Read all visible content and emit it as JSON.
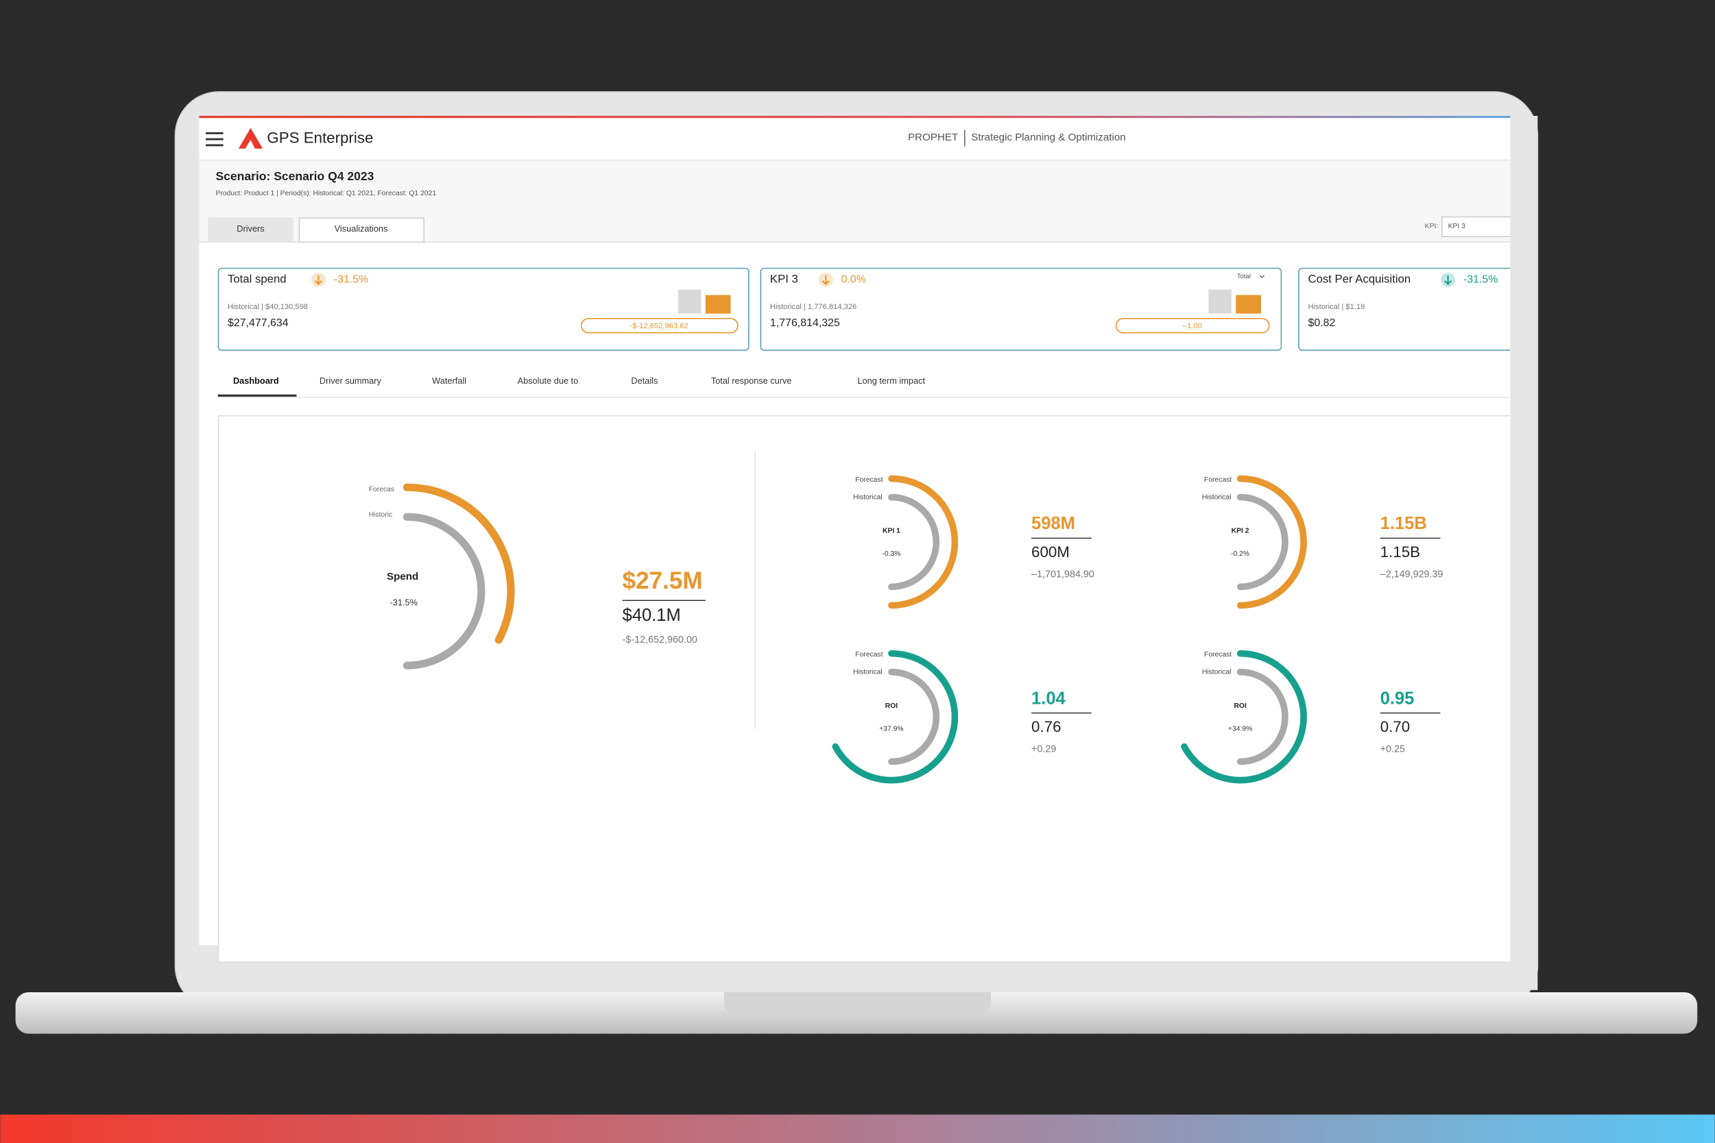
{
  "header": {
    "brand": "GPS Enterprise",
    "product": "PROPHET",
    "module": "Strategic Planning & Optimization"
  },
  "scenario": {
    "title": "Scenario: Scenario Q4 2023",
    "details": "Product: Product 1  |  Period(s): Historical: Q1 2021, Forecast: Q1 2021"
  },
  "tabs": [
    "Drivers",
    "Visualizations"
  ],
  "kpi_selector": {
    "label": "KPI:",
    "value": "KPI 3"
  },
  "kpi_cards": [
    {
      "title": "Total spend",
      "change": "-31.5%",
      "historical": "Historical | $40,130,598",
      "value": "$27,477,634",
      "delta": "-$-12,652,963.62"
    },
    {
      "title": "KPI 3",
      "change": "0.0%",
      "menu": "Total",
      "historical": "Historical | 1,776,814,326",
      "value": "1,776,814,325",
      "delta": "--1.00"
    },
    {
      "title": "Cost Per Acquisition",
      "change": "-31.5%",
      "historical": "Historical | $1.19",
      "value": "$0.82"
    }
  ],
  "nav_tabs": [
    "Dashboard",
    "Driver summary",
    "Waterfall",
    "Absolute due to",
    "Details",
    "Total response curve",
    "Long term impact"
  ],
  "main_gauge": {
    "label": "Spend",
    "change": "-31.5%",
    "forecast_label": "Forecas",
    "historical_label": "Historic",
    "forecast": "$27.5M",
    "historical": "$40.1M",
    "delta": "-$-12,652,960.00"
  },
  "small_gauges": [
    {
      "name": "KPI 1",
      "change": "-0.3%",
      "forecast_label": "Forecast",
      "historical_label": "Historical",
      "forecast": "598M",
      "historical": "600M",
      "delta": "–1,701,984.90"
    },
    {
      "name": "KPI 2",
      "change": "-0.2%",
      "forecast_label": "Forecast",
      "historical_label": "Historical",
      "forecast": "1.15B",
      "historical": "1.15B",
      "delta": "–2,149,929.39"
    },
    {
      "name": "ROI",
      "change": "+37.9%",
      "forecast_label": "Forecast",
      "historical_label": "Historical",
      "forecast": "1.04",
      "historical": "0.76",
      "delta": "+0.29"
    },
    {
      "name": "ROI",
      "change": "+34.9%",
      "forecast_label": "Forecast",
      "historical_label": "Historical",
      "forecast": "0.95",
      "historical": "0.70",
      "delta": "+0.25"
    }
  ]
}
